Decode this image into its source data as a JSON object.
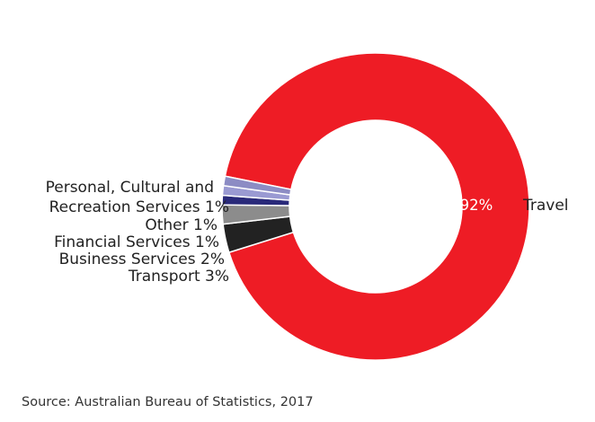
{
  "chart_data": {
    "type": "pie",
    "style": "donut",
    "title": "",
    "categories": [
      "Travel",
      "Transport",
      "Business Services",
      "Financial Services",
      "Other",
      "Personal, Cultural and Recreation Services"
    ],
    "values": [
      92,
      3,
      2,
      1,
      1,
      1
    ],
    "unit": "%",
    "slice_labels": [
      "Travel",
      "Transport 3%",
      "Business Services 2%",
      "Financial Services 1%",
      "Other 1%",
      "Personal, Cultural and Recreation Services 1%"
    ],
    "inner_label": "92%",
    "colors": [
      "#ee1c25",
      "#222222",
      "#8c8c8c",
      "#2a2a7a",
      "#9a9ad2",
      "#8c8cc4"
    ],
    "legend": "none"
  },
  "source": "Source: Australian Bureau of Statistics, 2017"
}
